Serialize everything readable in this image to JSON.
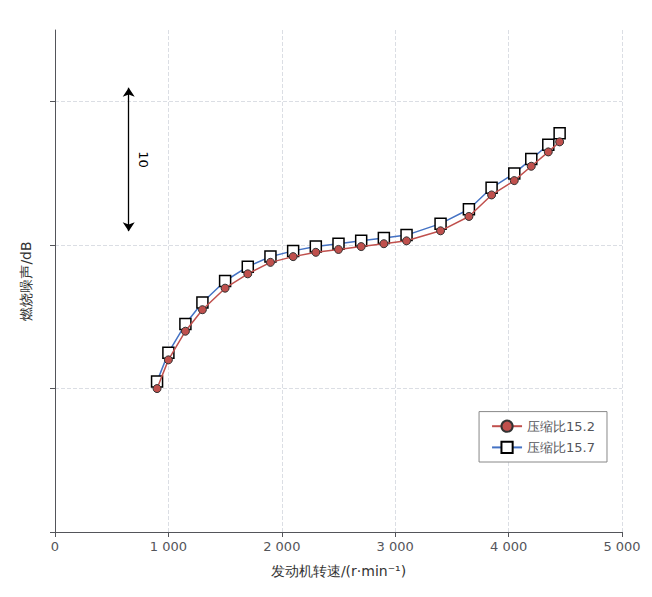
{
  "chart_data": {
    "type": "line",
    "xlabel": "发动机转速/(r·min⁻¹)",
    "ylabel": "燃烧噪声/dB",
    "xlim": [
      0,
      5000
    ],
    "xticks": [
      0,
      {
        "value": 1000,
        "label": "1 000"
      },
      {
        "value": 2000,
        "label": "2 000"
      },
      {
        "value": 3000,
        "label": "3 000"
      },
      {
        "value": 4000,
        "label": "4 000"
      },
      {
        "value": 5000,
        "label": "5 000"
      }
    ],
    "ylim": [
      68,
      103
    ],
    "yticks": [
      68,
      78,
      88,
      98
    ],
    "tick_labels": "x",
    "grid": true,
    "legend": "lower right",
    "annotations": [
      {
        "text": "10",
        "scale_bar": 10
      }
    ],
    "x": [
      900,
      1000,
      1150,
      1300,
      1500,
      1700,
      1900,
      2100,
      2300,
      2500,
      2700,
      2900,
      3100,
      3400,
      3650,
      3850,
      4050,
      4200,
      4350,
      4450
    ],
    "series": [
      {
        "name": "压缩比15.2",
        "color": "#c0504d",
        "marker": "circle",
        "values": [
          78,
          80,
          82,
          83.5,
          85,
          86,
          86.8,
          87.2,
          87.5,
          87.7,
          87.9,
          88.1,
          88.3,
          89,
          90,
          91.5,
          92.5,
          93.5,
          94.5,
          95.2
        ]
      },
      {
        "name": "压缩比15.7",
        "color": "#4472c4",
        "marker": "square",
        "values": [
          78.5,
          80.5,
          82.5,
          84,
          85.5,
          86.5,
          87.2,
          87.6,
          87.9,
          88.1,
          88.3,
          88.5,
          88.7,
          89.5,
          90.5,
          92,
          93,
          94,
          95,
          95.8
        ]
      }
    ]
  }
}
